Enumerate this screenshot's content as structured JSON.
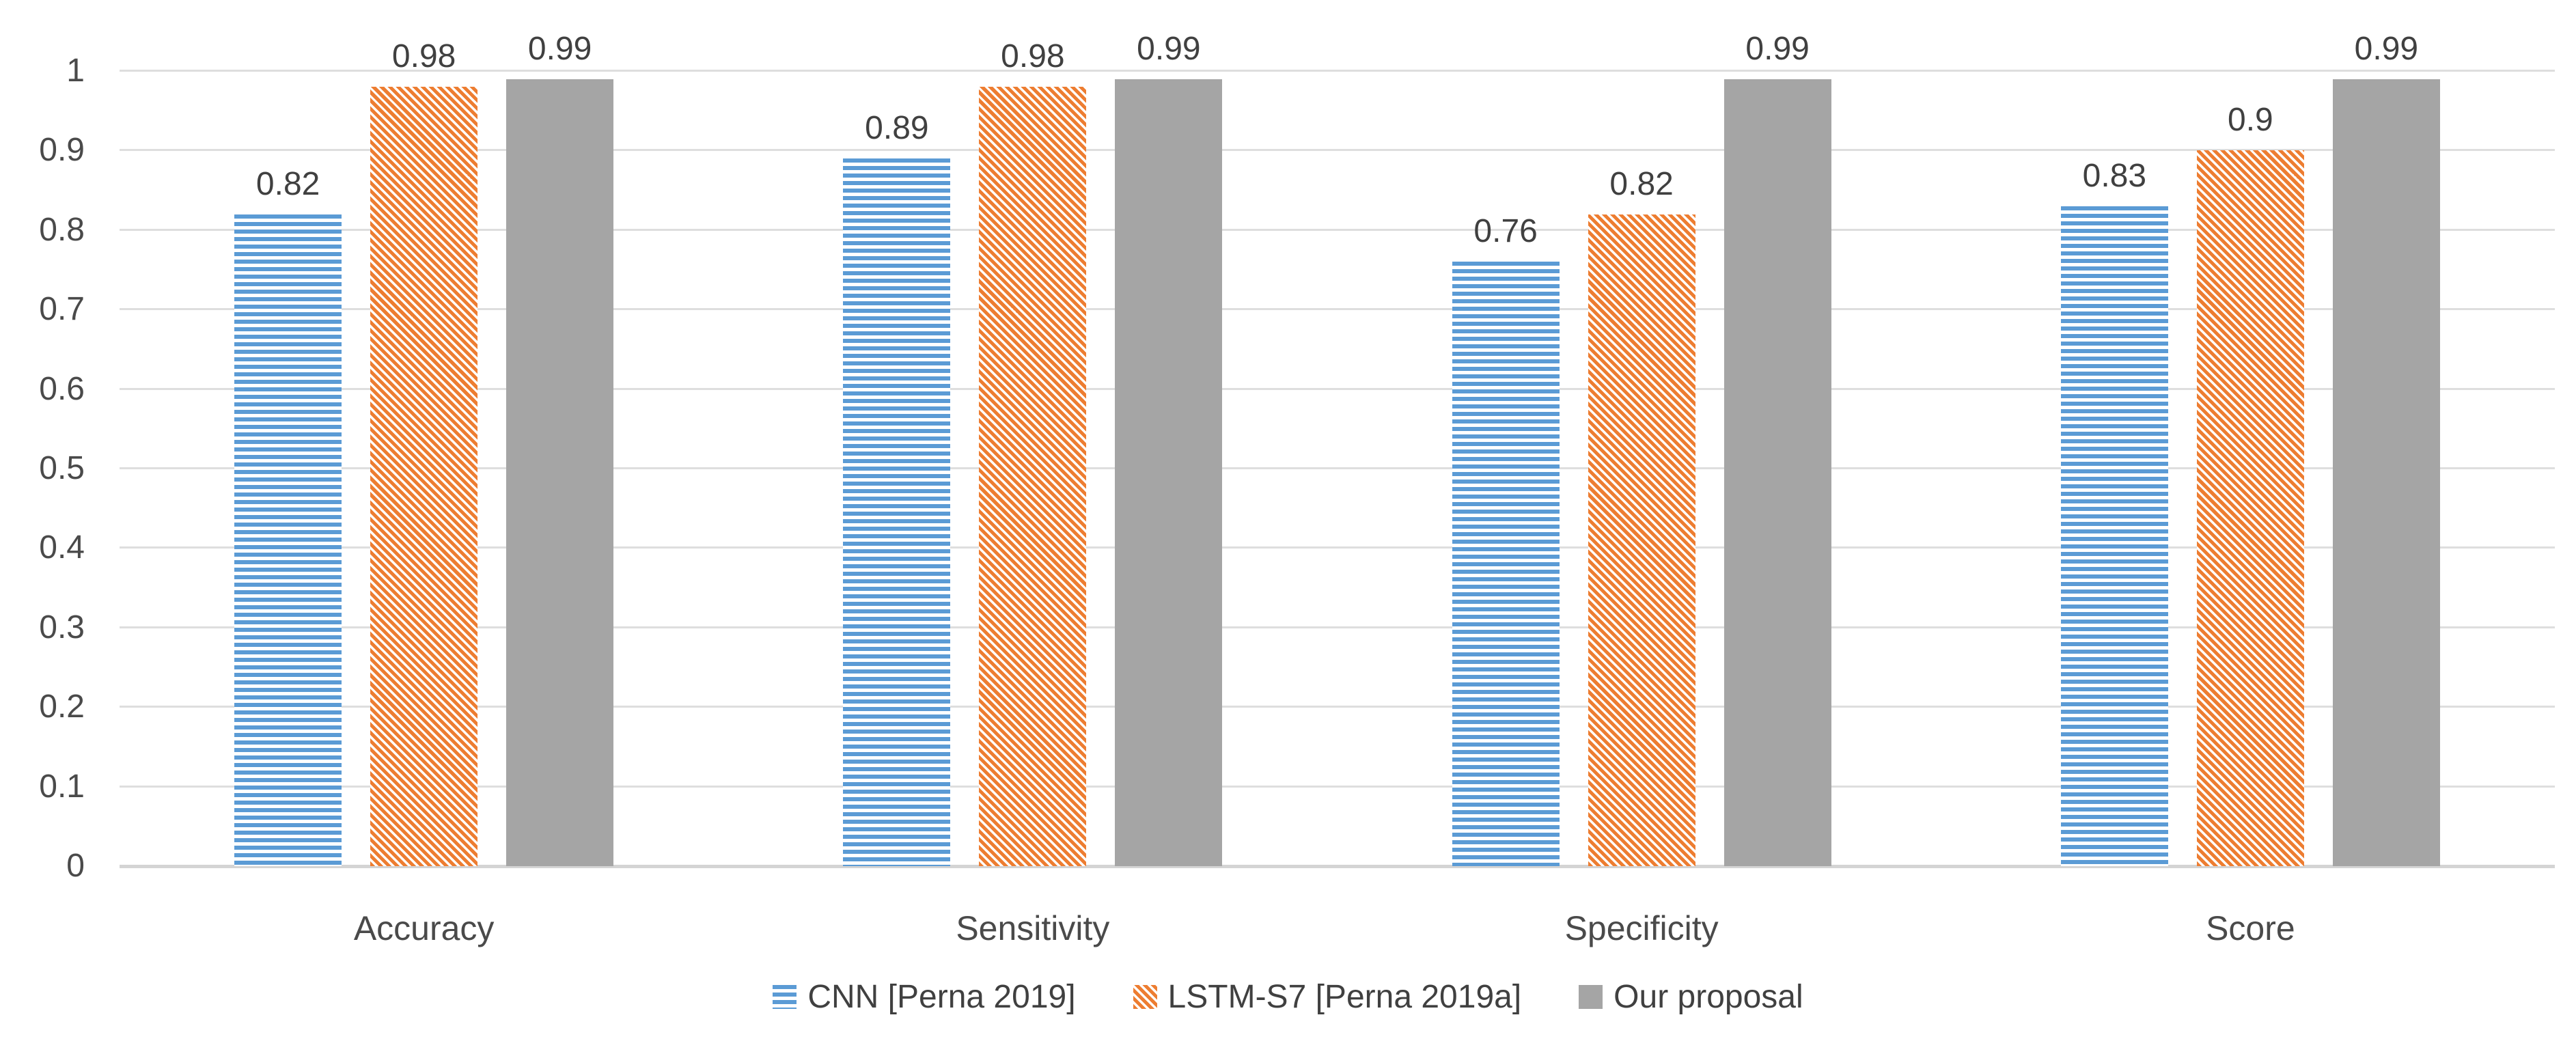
{
  "chart_data": {
    "type": "bar",
    "categories": [
      "Accuracy",
      "Sensitivity",
      "Specificity",
      "Score"
    ],
    "series": [
      {
        "name": "CNN [Perna 2019]",
        "color": "#5B9BD5",
        "pattern": "horizontal-stripes",
        "values": [
          0.82,
          0.89,
          0.76,
          0.83
        ]
      },
      {
        "name": "LSTM-S7 [Perna 2019a]",
        "color": "#ED7D31",
        "pattern": "diagonal-stripes",
        "values": [
          0.98,
          0.98,
          0.82,
          0.9
        ]
      },
      {
        "name": "Our proposal",
        "color": "#A5A5A5",
        "pattern": "solid",
        "values": [
          0.99,
          0.99,
          0.99,
          0.99
        ]
      }
    ],
    "data_labels": [
      [
        "0.82",
        "0.98",
        "0.99"
      ],
      [
        "0.89",
        "0.98",
        "0.99"
      ],
      [
        "0.76",
        "0.82",
        "0.99"
      ],
      [
        "0.83",
        "0.9",
        "0.99"
      ]
    ],
    "title": "",
    "xlabel": "",
    "ylabel": "",
    "y_axis": {
      "min": 0,
      "max": 1,
      "step": 0.1,
      "tick_labels": [
        "1",
        "0.9",
        "0.8",
        "0.7",
        "0.6",
        "0.5",
        "0.4",
        "0.3",
        "0.2",
        "0.1",
        "0"
      ]
    },
    "grid": true,
    "gridline_color": "#DEDEDE",
    "legend_position": "bottom-center"
  }
}
